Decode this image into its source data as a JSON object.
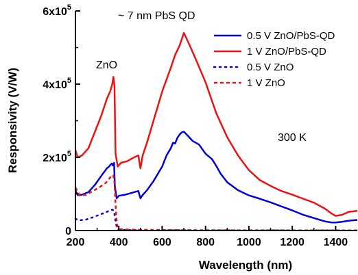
{
  "chart_data": {
    "type": "line",
    "title": "",
    "xlabel": "Wavelength (nm)",
    "ylabel": "Responsivity (V/W)",
    "xlim": [
      200,
      1500
    ],
    "ylim": [
      0,
      600000
    ],
    "x_ticks": [
      200,
      400,
      600,
      800,
      1000,
      1200,
      1400
    ],
    "x_tick_labels": [
      "200",
      "400",
      "600",
      "800",
      "1000",
      "1200",
      "1400"
    ],
    "y_ticks": [
      0,
      200000,
      400000,
      600000
    ],
    "y_tick_labels": [
      {
        "base": "0",
        "exp": ""
      },
      {
        "base": "2x10",
        "exp": "5"
      },
      {
        "base": "4x10",
        "exp": "5"
      },
      {
        "base": "6x10",
        "exp": "5"
      }
    ],
    "legend_position": "top-right",
    "annotations": [
      {
        "text": "~ 7 nm PbS QD"
      },
      {
        "text": "ZnO"
      },
      {
        "text": "300 K"
      }
    ],
    "series": [
      {
        "name": "0.5 V ZnO/PbS-QD",
        "color": "#0000dd",
        "style": "solid",
        "x": [
          200,
          210,
          230,
          260,
          290,
          320,
          345,
          355,
          362,
          368,
          372,
          378,
          382,
          390,
          400,
          430,
          460,
          490,
          500,
          510,
          530,
          560,
          600,
          620,
          640,
          650,
          660,
          670,
          680,
          690,
          700,
          720,
          740,
          770,
          800,
          830,
          850,
          870,
          900,
          950,
          1000,
          1050,
          1100,
          1150,
          1200,
          1250,
          1300,
          1350,
          1380,
          1400,
          1430,
          1460,
          1500
        ],
        "y": [
          110000,
          97000,
          98000,
          105000,
          125000,
          150000,
          170000,
          175000,
          180000,
          183000,
          178000,
          185000,
          120000,
          88000,
          95000,
          98000,
          103000,
          108000,
          88000,
          97000,
          110000,
          135000,
          175000,
          205000,
          225000,
          240000,
          238000,
          253000,
          262000,
          268000,
          270000,
          258000,
          245000,
          235000,
          210000,
          195000,
          176000,
          155000,
          132000,
          110000,
          96000,
          87000,
          77000,
          66000,
          55000,
          43000,
          34000,
          25000,
          22000,
          22000,
          24000,
          27000,
          29000
        ]
      },
      {
        "name": "1 V ZnO/PbS-QD",
        "color": "#ee1111",
        "style": "solid",
        "x": [
          200,
          210,
          230,
          260,
          290,
          320,
          345,
          360,
          370,
          375,
          380,
          385,
          395,
          410,
          440,
          470,
          490,
          500,
          510,
          530,
          560,
          600,
          640,
          660,
          680,
          700,
          720,
          750,
          800,
          850,
          900,
          950,
          1000,
          1050,
          1100,
          1150,
          1200,
          1250,
          1300,
          1350,
          1380,
          1400,
          1430,
          1460,
          1500
        ],
        "y": [
          220000,
          200000,
          205000,
          225000,
          270000,
          315000,
          360000,
          380000,
          400000,
          420000,
          395000,
          210000,
          175000,
          185000,
          190000,
          200000,
          205000,
          170000,
          205000,
          240000,
          300000,
          380000,
          445000,
          480000,
          505000,
          540000,
          515000,
          475000,
          405000,
          320000,
          255000,
          205000,
          165000,
          138000,
          122000,
          108000,
          98000,
          87000,
          76000,
          60000,
          47000,
          40000,
          43000,
          51000,
          54000
        ]
      },
      {
        "name": "0.5 V ZnO",
        "color": "#0000dd",
        "style": "dotted",
        "x": [
          200,
          220,
          250,
          280,
          310,
          340,
          360,
          370,
          375,
          380,
          385,
          390,
          395,
          400,
          420,
          450,
          500,
          600,
          800,
          1000,
          1200,
          1400,
          1500
        ],
        "y": [
          32000,
          28000,
          30000,
          36000,
          43000,
          50000,
          55000,
          57000,
          55000,
          45000,
          25000,
          10000,
          4000,
          2000,
          1500,
          1200,
          1000,
          800,
          600,
          500,
          400,
          300,
          300
        ]
      },
      {
        "name": "1 V ZnO",
        "color": "#ee1111",
        "style": "dashed",
        "x": [
          200,
          220,
          250,
          280,
          310,
          340,
          360,
          370,
          375,
          380,
          385,
          390,
          395,
          400,
          420,
          450,
          500,
          600,
          800,
          1000,
          1200,
          1400,
          1500
        ],
        "y": [
          118000,
          96000,
          98000,
          108000,
          118000,
          130000,
          145000,
          152000,
          150000,
          130000,
          70000,
          25000,
          8000,
          4000,
          3000,
          2500,
          2000,
          1500,
          1000,
          800,
          600,
          500,
          500
        ]
      }
    ]
  }
}
